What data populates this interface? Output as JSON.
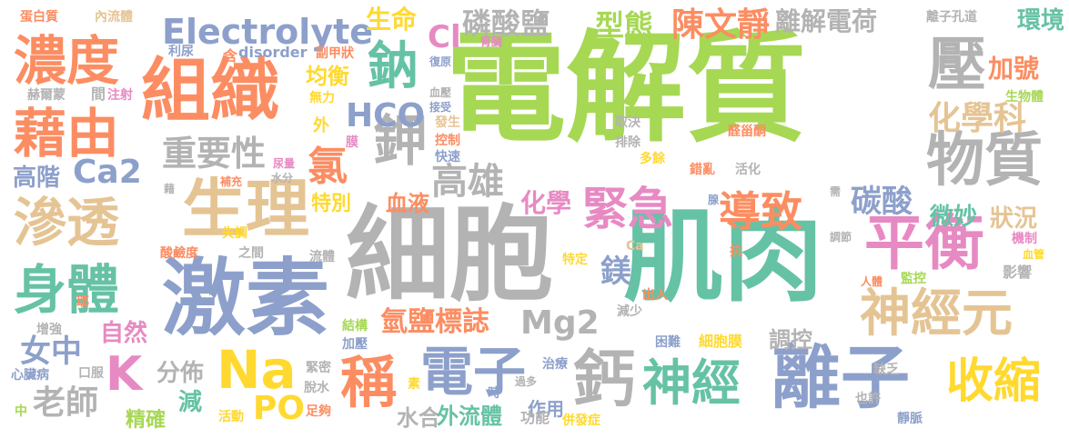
{
  "palette": {
    "green": "#a6d854",
    "gray": "#b3b3b3",
    "blue": "#8da0cb",
    "orange": "#fc8d62",
    "teal": "#66c2a5",
    "pink": "#e78ac3",
    "yellow": "#ffd92f",
    "tan": "#e5c494"
  },
  "words": [
    {
      "text": "電解質",
      "color": "#a6d854"
    },
    {
      "text": "細胞",
      "color": "#b3b3b3"
    },
    {
      "text": "肌肉",
      "color": "#66c2a5"
    },
    {
      "text": "激素",
      "color": "#8da0cb"
    },
    {
      "text": "組織",
      "color": "#fc8d62"
    },
    {
      "text": "生理",
      "color": "#e5c494"
    },
    {
      "text": "離子",
      "color": "#8da0cb"
    },
    {
      "text": "平衡",
      "color": "#e78ac3"
    },
    {
      "text": "濃度",
      "color": "#fc8d62"
    },
    {
      "text": "藉由",
      "color": "#fc8d62"
    },
    {
      "text": "滲透",
      "color": "#e5c494"
    },
    {
      "text": "身體",
      "color": "#66c2a5"
    },
    {
      "text": "物質",
      "color": "#b3b3b3"
    },
    {
      "text": "壓",
      "color": "#b3b3b3"
    },
    {
      "text": "Na",
      "color": "#ffd92f"
    },
    {
      "text": "電子",
      "color": "#8da0cb"
    },
    {
      "text": "神經元",
      "color": "#e5c494"
    },
    {
      "text": "緊急",
      "color": "#e78ac3"
    },
    {
      "text": "導致",
      "color": "#fc8d62"
    },
    {
      "text": "神經",
      "color": "#66c2a5"
    },
    {
      "text": "鈣",
      "color": "#b3b3b3"
    },
    {
      "text": "收縮",
      "color": "#ffd92f"
    },
    {
      "text": "稱",
      "color": "#fc8d62"
    },
    {
      "text": "Electrolyte",
      "color": "#8da0cb"
    },
    {
      "text": "鈉",
      "color": "#66c2a5"
    },
    {
      "text": "鉀",
      "color": "#b3b3b3"
    },
    {
      "text": "K",
      "color": "#e78ac3"
    },
    {
      "text": "Mg2",
      "color": "#b3b3b3"
    },
    {
      "text": "磷酸鹽",
      "color": "#b3b3b3"
    },
    {
      "text": "陳文靜",
      "color": "#fc8d62"
    },
    {
      "text": "型態",
      "color": "#a6d854"
    },
    {
      "text": "離解電荷",
      "color": "#b3b3b3"
    },
    {
      "text": "重要性",
      "color": "#b3b3b3"
    },
    {
      "text": "高雄",
      "color": "#b3b3b3"
    },
    {
      "text": "HCO",
      "color": "#8da0cb"
    },
    {
      "text": "氯",
      "color": "#fc8d62"
    },
    {
      "text": "Ca2",
      "color": "#8da0cb"
    },
    {
      "text": "碳酸",
      "color": "#8da0cb"
    },
    {
      "text": "化學科",
      "color": "#e5c494"
    },
    {
      "text": "氫鹽標誌",
      "color": "#fc8d62"
    },
    {
      "text": "PO",
      "color": "#ffd92f"
    },
    {
      "text": "老師",
      "color": "#b3b3b3"
    },
    {
      "text": "女中",
      "color": "#8da0cb"
    },
    {
      "text": "自然",
      "color": "#e78ac3"
    },
    {
      "text": "分佈",
      "color": "#b3b3b3"
    },
    {
      "text": "減",
      "color": "#66c2a5"
    },
    {
      "text": "精確",
      "color": "#a6d854"
    },
    {
      "text": "鎂",
      "color": "#8da0cb"
    },
    {
      "text": "化學",
      "color": "#e78ac3"
    },
    {
      "text": "血液",
      "color": "#fc8d62"
    },
    {
      "text": "特別",
      "color": "#ffd92f"
    },
    {
      "text": "均衡",
      "color": "#ffd92f"
    },
    {
      "text": "生命",
      "color": "#ffd92f"
    },
    {
      "text": "Cl",
      "color": "#e78ac3"
    },
    {
      "text": "加號",
      "color": "#fc8d62"
    },
    {
      "text": "環境",
      "color": "#66c2a5"
    },
    {
      "text": "狀況",
      "color": "#e5c494"
    },
    {
      "text": "微妙",
      "color": "#66c2a5"
    },
    {
      "text": "調控",
      "color": "#b3b3b3"
    },
    {
      "text": "水合",
      "color": "#b3b3b3"
    },
    {
      "text": "外流體",
      "color": "#66c2a5"
    },
    {
      "text": "作用",
      "color": "#8da0cb"
    },
    {
      "text": "高階",
      "color": "#8da0cb"
    },
    {
      "text": "蛋白質",
      "color": "#fc8d62"
    },
    {
      "text": "內流體",
      "color": "#e5c494"
    },
    {
      "text": "利尿",
      "color": "#8da0cb"
    },
    {
      "text": "含",
      "color": "#fc8d62"
    },
    {
      "text": "disorder",
      "color": "#8da0cb"
    },
    {
      "text": "副甲狀",
      "color": "#fc8d62"
    },
    {
      "text": "無力",
      "color": "#ffd92f"
    },
    {
      "text": "外",
      "color": "#ffd92f"
    },
    {
      "text": "膜",
      "color": "#e78ac3"
    },
    {
      "text": "赫爾蒙",
      "color": "#b3b3b3"
    },
    {
      "text": "間",
      "color": "#b3b3b3"
    },
    {
      "text": "注射",
      "color": "#e78ac3"
    },
    {
      "text": "復原",
      "color": "#8da0cb"
    },
    {
      "text": "腎臟",
      "color": "#e78ac3"
    },
    {
      "text": "血壓",
      "color": "#b3b3b3"
    },
    {
      "text": "接受",
      "color": "#8da0cb"
    },
    {
      "text": "發生",
      "color": "#e5c494"
    },
    {
      "text": "控制",
      "color": "#fc8d62"
    },
    {
      "text": "快速",
      "color": "#8da0cb"
    },
    {
      "text": "取決",
      "color": "#b3b3b3"
    },
    {
      "text": "排除",
      "color": "#b3b3b3"
    },
    {
      "text": "醛甾酮",
      "color": "#fc8d62"
    },
    {
      "text": "多餘",
      "color": "#ffd92f"
    },
    {
      "text": "錯亂",
      "color": "#fc8d62"
    },
    {
      "text": "活化",
      "color": "#b3b3b3"
    },
    {
      "text": "離子孔道",
      "color": "#b3b3b3"
    },
    {
      "text": "生物體",
      "color": "#a6d854"
    },
    {
      "text": "需",
      "color": "#b3b3b3"
    },
    {
      "text": "腺",
      "color": "#8da0cb"
    },
    {
      "text": "調節",
      "color": "#b3b3b3"
    },
    {
      "text": "機制",
      "color": "#e78ac3"
    },
    {
      "text": "血管",
      "color": "#ffd92f"
    },
    {
      "text": "影響",
      "color": "#b3b3b3"
    },
    {
      "text": "人體",
      "color": "#fc8d62"
    },
    {
      "text": "監控",
      "color": "#a6d854"
    },
    {
      "text": "抗",
      "color": "#fc8d62"
    },
    {
      "text": "特定",
      "color": "#ffd92f"
    },
    {
      "text": "Ca",
      "color": "#e5c494"
    },
    {
      "text": "出入",
      "color": "#fc8d62"
    },
    {
      "text": "減少",
      "color": "#b3b3b3"
    },
    {
      "text": "細胞膜",
      "color": "#ffd92f"
    },
    {
      "text": "困難",
      "color": "#8da0cb"
    },
    {
      "text": "缺乏",
      "color": "#b3b3b3"
    },
    {
      "text": "也許",
      "color": "#b3b3b3"
    },
    {
      "text": "靜脈",
      "color": "#8da0cb"
    },
    {
      "text": "治療",
      "color": "#8da0cb"
    },
    {
      "text": "功能",
      "color": "#b3b3b3"
    },
    {
      "text": "併發症",
      "color": "#ffd92f"
    },
    {
      "text": "過多",
      "color": "#b3b3b3"
    },
    {
      "text": "時",
      "color": "#8da0cb"
    },
    {
      "text": "素",
      "color": "#ffd92f"
    },
    {
      "text": "足夠",
      "color": "#fc8d62"
    },
    {
      "text": "活動",
      "color": "#ffd92f"
    },
    {
      "text": "脫水",
      "color": "#b3b3b3"
    },
    {
      "text": "緊密",
      "color": "#b3b3b3"
    },
    {
      "text": "結構",
      "color": "#a6d854"
    },
    {
      "text": "加壓",
      "color": "#8da0cb"
    },
    {
      "text": "流體",
      "color": "#b3b3b3"
    },
    {
      "text": "之間",
      "color": "#b3b3b3"
    },
    {
      "text": "酸鹼度",
      "color": "#fc8d62"
    },
    {
      "text": "失調",
      "color": "#ffd92f"
    },
    {
      "text": "補充",
      "color": "#fc8d62"
    },
    {
      "text": "藉",
      "color": "#b3b3b3"
    },
    {
      "text": "水分",
      "color": "#b3b3b3"
    },
    {
      "text": "尿量",
      "color": "#e78ac3"
    },
    {
      "text": "耶",
      "color": "#fc8d62"
    },
    {
      "text": "增強",
      "color": "#b3b3b3"
    },
    {
      "text": "心臟病",
      "color": "#8da0cb"
    },
    {
      "text": "口服",
      "color": "#b3b3b3"
    },
    {
      "text": "中",
      "color": "#a6d854"
    }
  ]
}
